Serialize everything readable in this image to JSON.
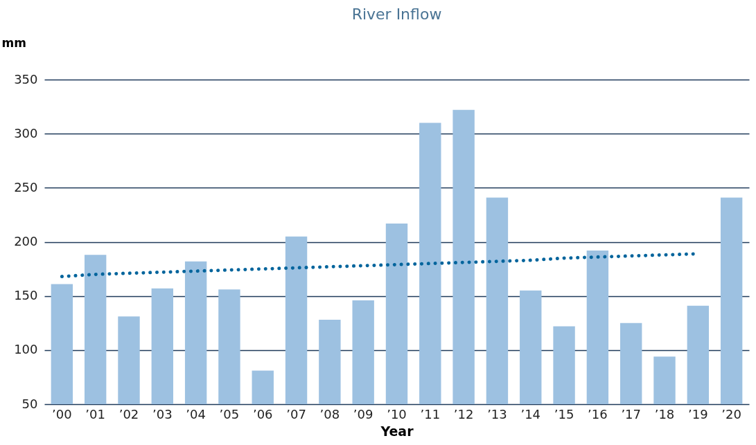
{
  "chart_data": {
    "type": "bar",
    "title": "River Inflow",
    "xlabel": "Year",
    "ylabel": "mm",
    "categories": [
      "’00",
      "’01",
      "’02",
      "’03",
      "’04",
      "’05",
      "’06",
      "’07",
      "’08",
      "’09",
      "’10",
      "’11",
      "’12",
      "’13",
      "’14",
      "’15",
      "’16",
      "’17",
      "’18",
      "’19",
      "’20"
    ],
    "series": [
      {
        "color": "#9dc1e1",
        "values": [
          161,
          188,
          131,
          157,
          182,
          156,
          81,
          205,
          128,
          146,
          217,
          310,
          322,
          241,
          155,
          122,
          192,
          125,
          94,
          141,
          241
        ]
      },
      {
        "type": "line",
        "color": "#00649c",
        "line_style": "dotted",
        "values": [
          168,
          170,
          171,
          172,
          173,
          174,
          175,
          176,
          177,
          178,
          179,
          180,
          181,
          182,
          183,
          185,
          186,
          187,
          188,
          189,
          null
        ]
      }
    ],
    "ylim": [
      50,
      350
    ],
    "yticks": [
      50,
      100,
      150,
      200,
      250,
      300,
      350
    ],
    "grid": "y"
  }
}
